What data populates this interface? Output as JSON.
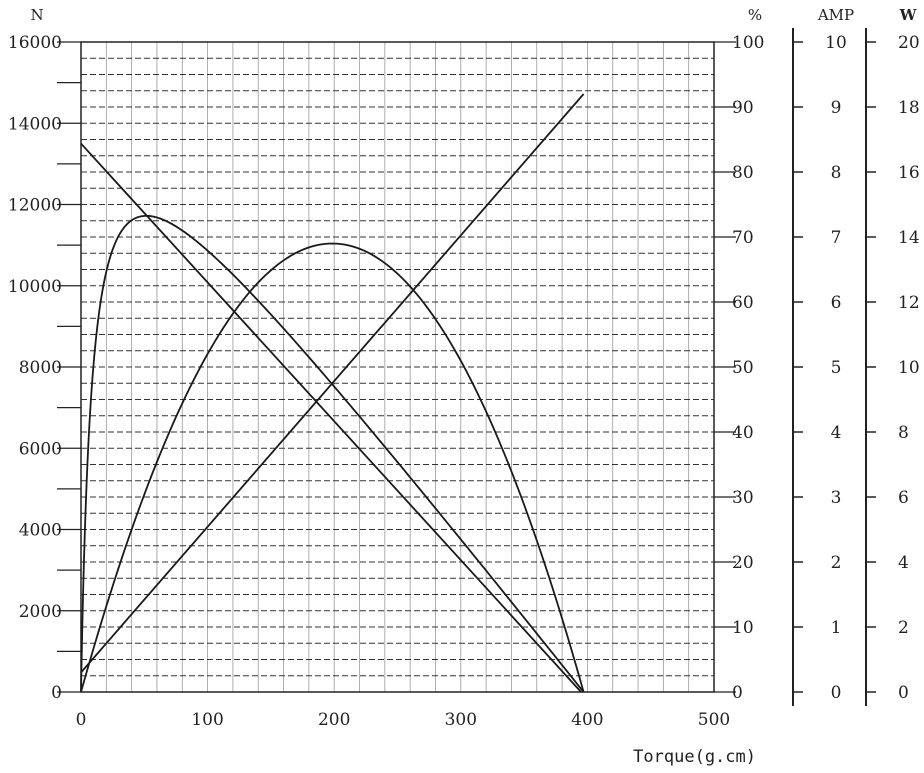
{
  "chart_data": {
    "type": "line",
    "xlabel": "Torque(g.cm)",
    "xlim": [
      0,
      500
    ],
    "x_ticks": [
      0,
      100,
      200,
      300,
      400,
      500
    ],
    "grid": true,
    "axes": {
      "speed": {
        "label": "N",
        "side": "left",
        "lim": [
          0,
          16000
        ],
        "ticks": [
          0,
          2000,
          4000,
          6000,
          8000,
          10000,
          12000,
          14000,
          16000
        ]
      },
      "efficiency": {
        "label": "%",
        "side": "right",
        "lim": [
          0,
          100
        ],
        "ticks": [
          0,
          10,
          20,
          30,
          40,
          50,
          60,
          70,
          80,
          90,
          100
        ]
      },
      "current": {
        "label": "AMP",
        "side": "right-outer",
        "lim": [
          0,
          10
        ],
        "ticks": [
          0,
          1,
          2,
          3,
          4,
          5,
          6,
          7,
          8,
          9,
          10
        ]
      },
      "power": {
        "label": "W",
        "side": "right-outermost",
        "lim": [
          0,
          20
        ],
        "ticks": [
          0,
          2,
          4,
          6,
          8,
          10,
          12,
          14,
          16,
          18,
          20
        ]
      }
    },
    "series": [
      {
        "axis": "speed",
        "shape": "linear",
        "x": [
          0,
          395
        ],
        "y": [
          13500,
          0
        ]
      },
      {
        "axis": "current",
        "shape": "linear",
        "x": [
          0,
          397
        ],
        "y": [
          0.3,
          9.2
        ]
      },
      {
        "axis": "efficiency",
        "shape": "efficiency",
        "x": [
          0,
          60,
          397
        ],
        "y": [
          0,
          73,
          0
        ]
      },
      {
        "axis": "power",
        "shape": "parabola",
        "x": [
          0,
          198,
          397
        ],
        "y": [
          0,
          13.8,
          0
        ]
      }
    ]
  }
}
